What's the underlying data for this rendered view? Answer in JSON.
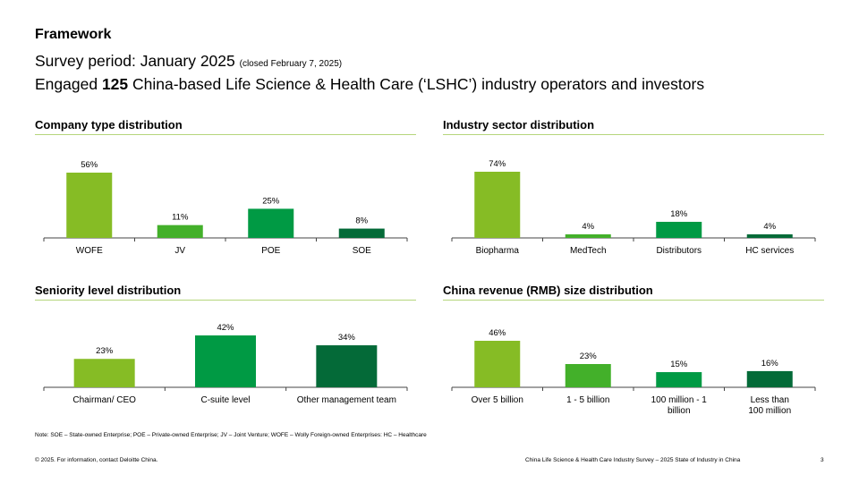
{
  "header": {
    "framework": "Framework",
    "survey_label": "Survey period: January 2025",
    "survey_closed": "(closed February 7, 2025)",
    "engaged_prefix": "Engaged",
    "engaged_count": "125",
    "engaged_suffix": "China-based Life Science & Health Care (‘LSHC’) industry operators and investors"
  },
  "colors": {
    "light_green": "#86bc25",
    "green": "#009a44",
    "dark_green": "#046a38",
    "rule": "#b5d67c"
  },
  "chart_data": [
    {
      "type": "bar",
      "title": "Company type distribution",
      "categories": [
        "WOFE",
        "JV",
        "POE",
        "SOE"
      ],
      "values": [
        56,
        11,
        25,
        8
      ],
      "value_labels": [
        "56%",
        "11%",
        "25%",
        "8%"
      ],
      "colors": [
        "#86bc25",
        "#43b02a",
        "#009a44",
        "#046a38"
      ],
      "ylim": [
        0,
        56
      ]
    },
    {
      "type": "bar",
      "title": "Industry sector distribution",
      "categories": [
        "Biopharma",
        "MedTech",
        "Distributors",
        "HC services"
      ],
      "values": [
        74,
        4,
        18,
        4
      ],
      "value_labels": [
        "74%",
        "4%",
        "18%",
        "4%"
      ],
      "colors": [
        "#86bc25",
        "#43b02a",
        "#009a44",
        "#046a38"
      ],
      "ylim": [
        0,
        74
      ]
    },
    {
      "type": "bar",
      "title": "Seniority level distribution",
      "categories": [
        "Chairman/ CEO",
        "C-suite level",
        "Other management team"
      ],
      "values": [
        23,
        42,
        34
      ],
      "value_labels": [
        "23%",
        "42%",
        "34%"
      ],
      "colors": [
        "#86bc25",
        "#009a44",
        "#046a38"
      ],
      "ylim": [
        0,
        42
      ]
    },
    {
      "type": "bar",
      "title": "China revenue (RMB) size distribution",
      "categories": [
        "Over 5 billion",
        "1 - 5 billion",
        "100 million - 1 billion",
        "Less than 100 million"
      ],
      "values": [
        46,
        23,
        15,
        16
      ],
      "value_labels": [
        "46%",
        "23%",
        "15%",
        "16%"
      ],
      "colors": [
        "#86bc25",
        "#43b02a",
        "#009a44",
        "#046a38"
      ],
      "ylim": [
        0,
        46
      ]
    }
  ],
  "footer": {
    "note": "Note: SOE – State-owned Enterprise; POE – Private-owned Enterprise; JV – Joint Venture; WOFE – Wolly Foreign-owned Enterprises: HC – Healthcare",
    "copyright": "© 2025. For information, contact Deloitte China.",
    "survey_title": "China Life Science & Health Care Industry Survey – 2025 State of Industry in China",
    "page_number": "3"
  }
}
